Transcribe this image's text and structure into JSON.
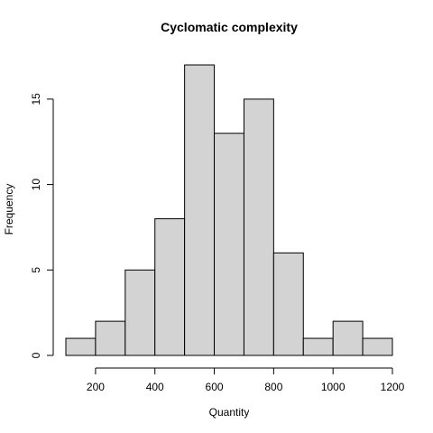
{
  "chart_data": {
    "type": "bar",
    "title": "Cyclomatic complexity",
    "xlabel": "Quantity",
    "ylabel": "Frequency",
    "bins": [
      {
        "start": 100,
        "end": 200,
        "count": 1
      },
      {
        "start": 200,
        "end": 300,
        "count": 2
      },
      {
        "start": 300,
        "end": 400,
        "count": 5
      },
      {
        "start": 400,
        "end": 500,
        "count": 8
      },
      {
        "start": 500,
        "end": 600,
        "count": 17
      },
      {
        "start": 600,
        "end": 700,
        "count": 13
      },
      {
        "start": 700,
        "end": 800,
        "count": 15
      },
      {
        "start": 800,
        "end": 900,
        "count": 6
      },
      {
        "start": 900,
        "end": 1000,
        "count": 1
      },
      {
        "start": 1000,
        "end": 1100,
        "count": 2
      },
      {
        "start": 1100,
        "end": 1200,
        "count": 1
      }
    ],
    "x_ticks": [
      200,
      400,
      600,
      800,
      1000,
      1200
    ],
    "y_ticks": [
      0,
      5,
      10,
      15
    ],
    "xlim": [
      100,
      1200
    ],
    "ylim": [
      0,
      17
    ],
    "grid": false,
    "bar_color": "#d3d3d3",
    "edge_color": "#000000"
  }
}
